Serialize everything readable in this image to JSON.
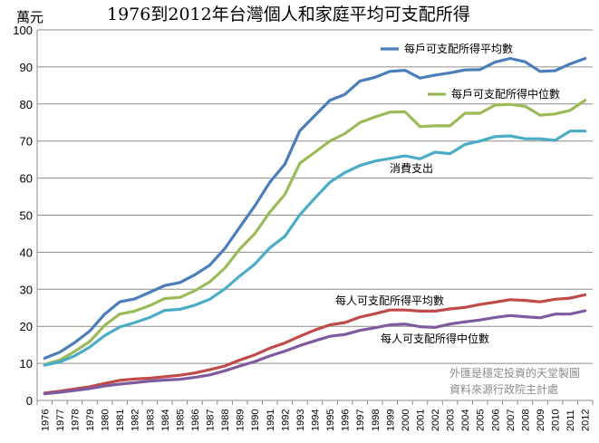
{
  "chart_data": {
    "type": "line",
    "title": "1976到2012年台灣個人和家庭平均可支配所得",
    "ylabel": "萬元",
    "ylim": [
      0,
      100
    ],
    "yticks": [
      0,
      10,
      20,
      30,
      40,
      50,
      60,
      70,
      80,
      90,
      100
    ],
    "grid": true,
    "categories": [
      "1976",
      "1977",
      "1978",
      "1979",
      "1980",
      "1981",
      "1982",
      "1983",
      "1984",
      "1985",
      "1986",
      "1987",
      "1988",
      "1989",
      "1990",
      "1991",
      "1992",
      "1993",
      "1994",
      "1995",
      "1996",
      "1997",
      "1998",
      "1999",
      "2000",
      "2001",
      "2002",
      "2003",
      "2004",
      "2005",
      "2006",
      "2007",
      "2008",
      "2009",
      "2010",
      "2011",
      "2012"
    ],
    "series": [
      {
        "name": "每戶可支配所得平均數",
        "color": "#4a7ebb",
        "values": [
          11.4,
          13.0,
          15.6,
          18.7,
          23.3,
          26.6,
          27.4,
          29.2,
          31.0,
          31.8,
          33.9,
          36.5,
          41.0,
          46.8,
          52.5,
          58.9,
          63.8,
          72.8,
          76.9,
          81.0,
          82.6,
          86.2,
          87.2,
          88.8,
          89.1,
          87.0,
          87.8,
          88.4,
          89.2,
          89.3,
          91.3,
          92.3,
          91.4,
          88.8,
          89.0,
          90.8,
          92.3
        ],
        "label_pos": [
          446,
          58
        ]
      },
      {
        "name": "每戶可支配所得中位數",
        "color": "#9bbb59",
        "values": [
          9.7,
          10.9,
          13.2,
          15.9,
          20.3,
          23.3,
          24.1,
          25.6,
          27.5,
          27.8,
          29.6,
          32.0,
          35.7,
          40.9,
          45.0,
          50.8,
          55.6,
          64.0,
          67.0,
          70.0,
          72.0,
          75.0,
          76.5,
          77.8,
          77.9,
          73.9,
          74.1,
          74.1,
          77.5,
          77.5,
          79.7,
          79.9,
          79.4,
          77.0,
          77.3,
          78.3,
          81.0
        ],
        "label_pos": [
          498,
          108
        ]
      },
      {
        "name": "消費支出",
        "color": "#4bacc6",
        "values": [
          9.5,
          10.4,
          12.0,
          14.4,
          17.5,
          19.8,
          21.0,
          22.4,
          24.3,
          24.6,
          25.7,
          27.3,
          30.1,
          33.6,
          36.8,
          41.2,
          44.3,
          50.1,
          54.6,
          58.9,
          61.5,
          63.4,
          64.6,
          65.3,
          66.0,
          65.2,
          67.0,
          66.6,
          69.1,
          70.0,
          71.2,
          71.4,
          70.6,
          70.6,
          70.2,
          72.7,
          72.7
        ]
      },
      {
        "name": "每人可支配所得平均數",
        "color": "#be4b48",
        "values": [
          2.0,
          2.5,
          3.1,
          3.7,
          4.6,
          5.4,
          5.8,
          6.0,
          6.4,
          6.8,
          7.4,
          8.3,
          9.3,
          10.9,
          12.3,
          14.1,
          15.5,
          17.3,
          19.0,
          20.4,
          21.0,
          22.5,
          23.4,
          24.4,
          24.4,
          24.1,
          24.1,
          24.7,
          25.1,
          25.9,
          26.5,
          27.2,
          27.0,
          26.6,
          27.3,
          27.6,
          28.5
        ]
      },
      {
        "name": "每人可支配所得中位數",
        "color": "#7e5ba1",
        "values": [
          1.8,
          2.2,
          2.7,
          3.2,
          3.9,
          4.4,
          4.8,
          5.2,
          5.5,
          5.7,
          6.2,
          6.9,
          8.0,
          9.3,
          10.5,
          12.0,
          13.3,
          14.8,
          16.1,
          17.3,
          17.8,
          18.9,
          19.6,
          20.4,
          20.6,
          19.9,
          19.7,
          20.6,
          21.2,
          21.7,
          22.4,
          22.9,
          22.6,
          22.3,
          23.3,
          23.3,
          24.2
        ]
      }
    ],
    "annotations": [
      "外匯是穩定投資的天堂製圖",
      "資料來源行政院主計處"
    ]
  }
}
